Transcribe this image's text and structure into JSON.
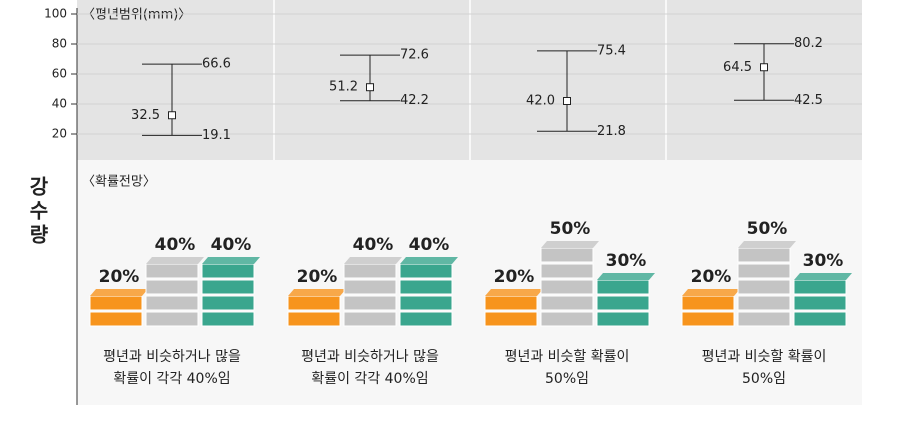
{
  "side_label": "강수량",
  "chart_data": [
    {
      "type": "errorbar",
      "title": "〈평년범위(mm)〉",
      "ylim": [
        3,
        100
      ],
      "yticks": [
        20,
        40,
        60,
        80,
        100
      ],
      "values": [
        32.5,
        51.2,
        42.0,
        64.5
      ],
      "value_labels": [
        "32.5",
        "51.2",
        "42.0",
        "64.5"
      ],
      "low": [
        19.1,
        42.2,
        21.8,
        42.5
      ],
      "high": [
        66.6,
        72.6,
        75.4,
        80.2
      ]
    },
    {
      "type": "blocks",
      "title": "〈확률전망〉",
      "series": [
        {
          "color": "#f7941d",
          "values": [
            20,
            20,
            20,
            20
          ],
          "value_labels": [
            "20%",
            "20%",
            "20%",
            "20%"
          ]
        },
        {
          "color": "#c4c4c4",
          "values": [
            40,
            40,
            50,
            50
          ],
          "value_labels": [
            "40%",
            "40%",
            "50%",
            "50%"
          ]
        },
        {
          "color": "#3aa68e",
          "values": [
            40,
            40,
            30,
            30
          ],
          "value_labels": [
            "40%",
            "40%",
            "30%",
            "30%"
          ]
        }
      ],
      "captions": [
        [
          "평년과 비슷하거나 많을",
          "확률이 각각 40%임"
        ],
        [
          "평년과 비슷하거나 많을",
          "확률이 각각 40%임"
        ],
        [
          "평년과 비슷할 확률이",
          "50%임"
        ],
        [
          "평년과 비슷할 확률이",
          "50%임"
        ]
      ]
    }
  ]
}
